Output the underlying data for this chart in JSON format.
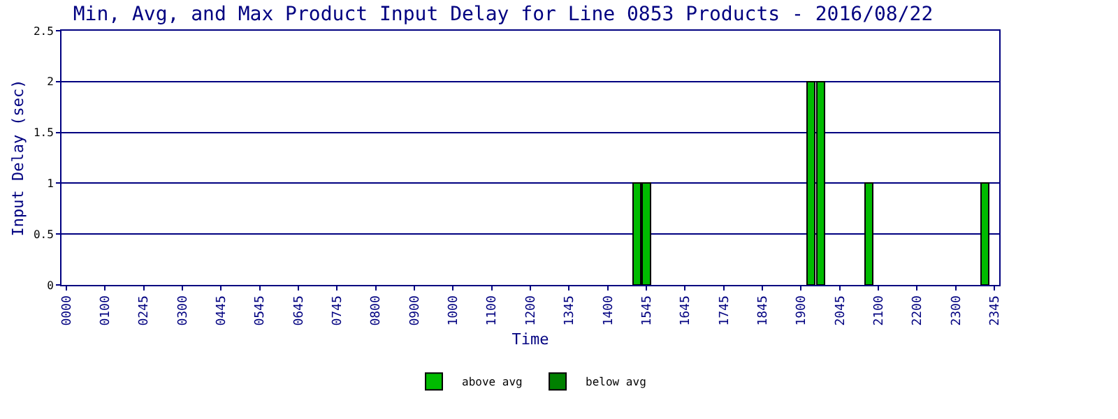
{
  "chart_data": {
    "type": "bar",
    "title": "Min, Avg, and Max Product Input Delay for Line 0853 Products - 2016/08/22",
    "xlabel": "Time",
    "ylabel": "Input Delay (sec)",
    "categories": [
      "0000",
      null,
      null,
      null,
      "0100",
      null,
      null,
      null,
      "0245",
      null,
      null,
      null,
      "0300",
      null,
      null,
      null,
      "0445",
      null,
      null,
      null,
      "0545",
      null,
      null,
      null,
      "0645",
      null,
      null,
      null,
      "0745",
      null,
      null,
      null,
      "0800",
      null,
      null,
      null,
      "0900",
      null,
      null,
      null,
      "1000",
      null,
      null,
      null,
      "1100",
      null,
      null,
      null,
      "1200",
      null,
      null,
      null,
      "1345",
      null,
      null,
      null,
      "1400",
      null,
      null,
      null,
      "1545",
      null,
      null,
      null,
      "1645",
      null,
      null,
      null,
      "1745",
      null,
      null,
      null,
      "1845",
      null,
      null,
      null,
      "1900",
      null,
      null,
      null,
      "2045",
      null,
      null,
      null,
      "2100",
      null,
      null,
      null,
      "2200",
      null,
      null,
      null,
      "2300",
      null,
      null,
      null,
      "2345"
    ],
    "stacked": true,
    "series": [
      {
        "name": "below avg",
        "color": "#008000",
        "values": [
          null,
          null,
          null,
          null,
          null,
          null,
          null,
          null,
          null,
          null,
          null,
          null,
          null,
          null,
          null,
          null,
          null,
          null,
          null,
          null,
          null,
          null,
          null,
          null,
          null,
          null,
          null,
          null,
          null,
          null,
          null,
          null,
          null,
          null,
          null,
          null,
          null,
          null,
          null,
          null,
          null,
          null,
          null,
          null,
          null,
          null,
          null,
          null,
          null,
          null,
          null,
          null,
          null,
          null,
          null,
          null,
          null,
          null,
          null,
          0,
          0,
          null,
          null,
          null,
          null,
          null,
          null,
          null,
          null,
          null,
          null,
          null,
          null,
          null,
          null,
          null,
          null,
          0,
          0,
          null,
          null,
          null,
          null,
          0,
          null,
          null,
          null,
          null,
          null,
          null,
          null,
          null,
          null,
          null,
          null,
          0,
          null
        ]
      },
      {
        "name": "above avg",
        "color": "#00bb00",
        "values": [
          null,
          null,
          null,
          null,
          null,
          null,
          null,
          null,
          null,
          null,
          null,
          null,
          null,
          null,
          null,
          null,
          null,
          null,
          null,
          null,
          null,
          null,
          null,
          null,
          null,
          null,
          null,
          null,
          null,
          null,
          null,
          null,
          null,
          null,
          null,
          null,
          null,
          null,
          null,
          null,
          null,
          null,
          null,
          null,
          null,
          null,
          null,
          null,
          null,
          null,
          null,
          null,
          null,
          null,
          null,
          null,
          null,
          null,
          null,
          1,
          1,
          null,
          null,
          null,
          null,
          null,
          null,
          null,
          null,
          null,
          null,
          null,
          null,
          null,
          null,
          null,
          null,
          2,
          2,
          null,
          null,
          null,
          null,
          1,
          null,
          null,
          null,
          null,
          null,
          null,
          null,
          null,
          null,
          null,
          null,
          1,
          null
        ]
      }
    ],
    "ylim": [
      0,
      2.5
    ],
    "yticks": [
      0,
      0.5,
      1,
      1.5,
      2,
      2.5
    ],
    "grid": "y",
    "legend": "bottom"
  }
}
